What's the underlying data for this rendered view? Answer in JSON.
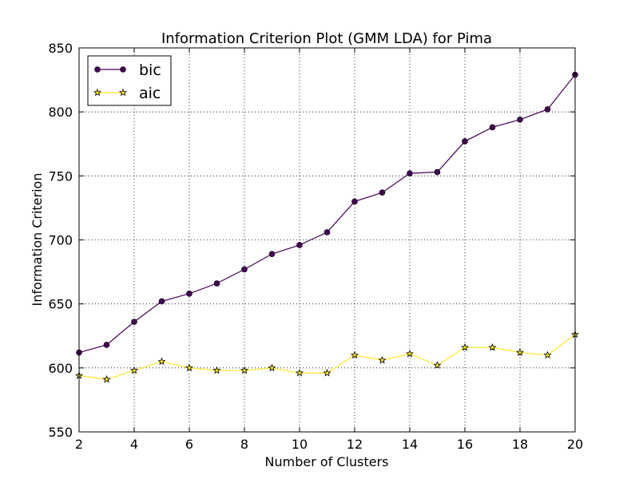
{
  "chart_data": {
    "type": "line",
    "title": "Information Criterion Plot (GMM LDA) for Pima",
    "xlabel": "Number of Clusters",
    "ylabel": "Information Criterion",
    "xlim": [
      2,
      20
    ],
    "ylim": [
      550,
      850
    ],
    "xticks": [
      "2",
      "4",
      "6",
      "8",
      "10",
      "12",
      "14",
      "16",
      "18",
      "20"
    ],
    "yticks": [
      "550",
      "600",
      "650",
      "700",
      "750",
      "800",
      "850"
    ],
    "grid": true,
    "legend_position": "top-left",
    "x": [
      2,
      3,
      4,
      5,
      6,
      7,
      8,
      9,
      10,
      11,
      12,
      13,
      14,
      15,
      16,
      17,
      18,
      19,
      20
    ],
    "series": [
      {
        "name": "bic",
        "color": "#440154",
        "marker": "circle",
        "values": [
          612,
          618,
          636,
          652,
          658,
          666,
          677,
          689,
          696,
          706,
          730,
          737,
          752,
          753,
          777,
          788,
          794,
          802,
          829
        ]
      },
      {
        "name": "aic",
        "color": "#fde725",
        "marker": "star",
        "values": [
          594,
          591,
          598,
          605,
          600,
          598,
          598,
          600,
          596,
          596,
          610,
          606,
          611,
          602,
          616,
          616,
          612,
          610,
          626
        ]
      }
    ]
  }
}
